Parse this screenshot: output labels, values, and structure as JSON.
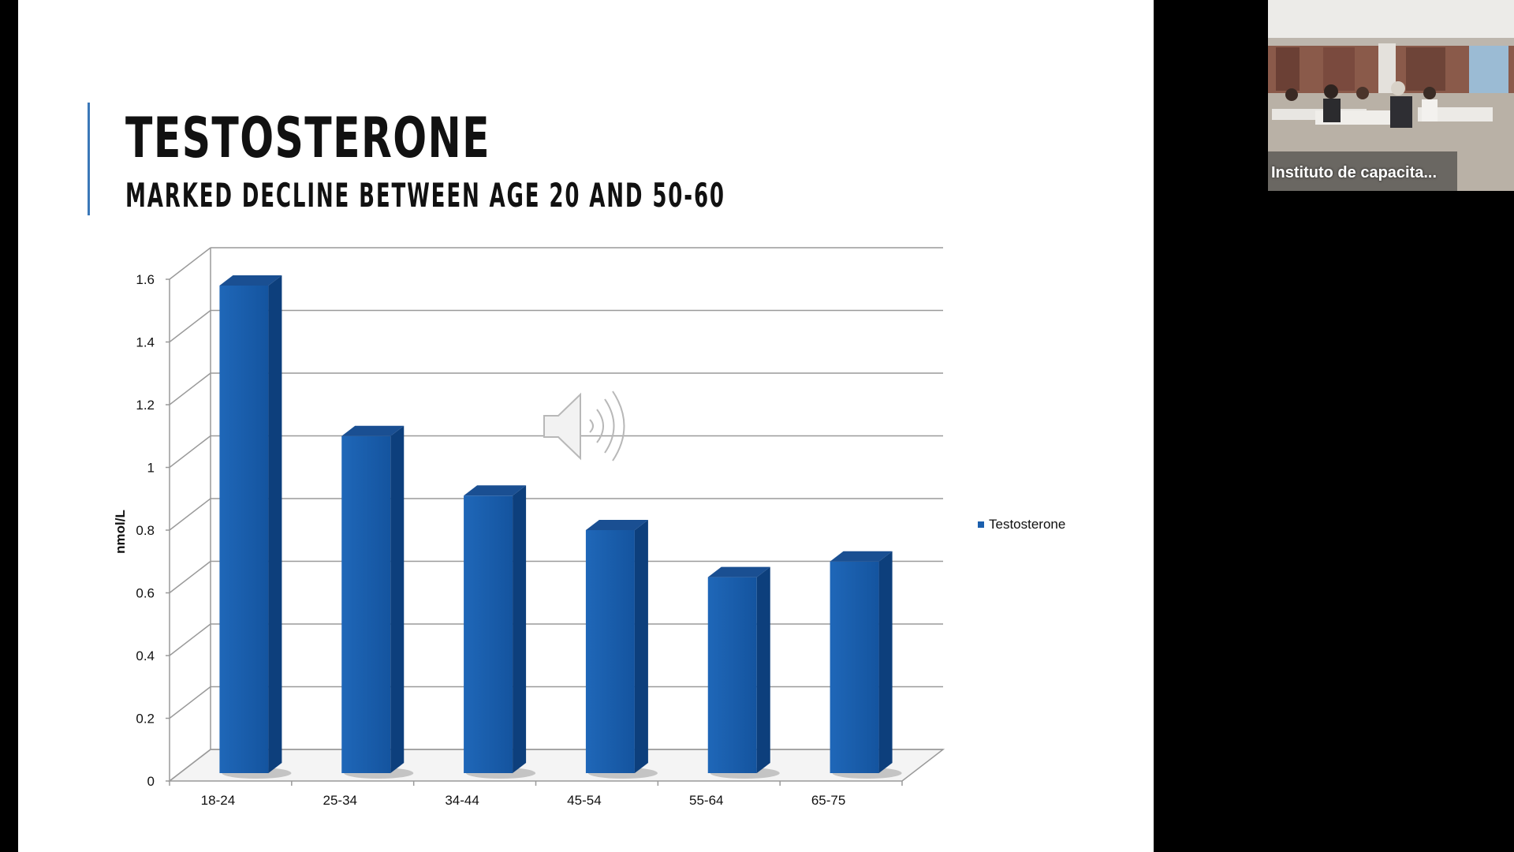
{
  "slide": {
    "title": "TESTOSTERONE",
    "subtitle": "MARKED DECLINE BETWEEN AGE 20 AND 50-60"
  },
  "chart_data": {
    "type": "bar",
    "categories": [
      "18-24",
      "25-34",
      "34-44",
      "45-54",
      "55-64",
      "65-75"
    ],
    "series": [
      {
        "name": "Testosterone",
        "values": [
          1.58,
          1.1,
          0.91,
          0.8,
          0.65,
          0.7
        ]
      }
    ],
    "title": "",
    "xlabel": "",
    "ylabel": "nmol/L",
    "ylim": [
      0,
      1.6
    ],
    "yticks": [
      "0",
      "0.2",
      "0.4",
      "0.6",
      "0.8",
      "1",
      "1.2",
      "1.4",
      "1.6"
    ],
    "grid": true,
    "legend": "right",
    "bar_color": "#1b5fad"
  },
  "webcam": {
    "participant_name": "Instituto de capacita..."
  },
  "icons": {
    "audio": "speaker-icon"
  }
}
